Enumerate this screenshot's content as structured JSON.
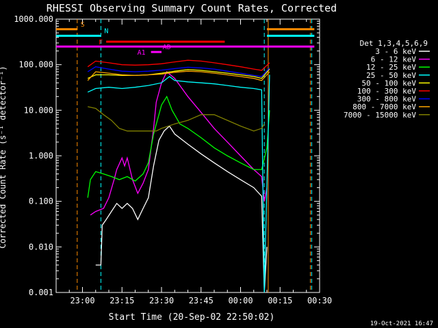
{
  "chart_data": {
    "type": "line",
    "title": "RHESSI Observing Summary Count Rates, Corrected",
    "xlabel": "Start Time (20-Sep-02 22:50:02)",
    "ylabel": "Corrected Count Rate (s⁻¹ detector⁻¹)",
    "footer": "19-Oct-2021 16:47",
    "yscale": "log",
    "ylim": [
      0.001,
      1000
    ],
    "xlim_min": [
      -10,
      90
    ],
    "x_tick_min": [
      0,
      15,
      30,
      45,
      60,
      75,
      90
    ],
    "x_tick_labels": [
      "23:00",
      "23:15",
      "23:30",
      "23:45",
      "00:00",
      "00:15",
      "00:30"
    ],
    "y_ticks": [
      0.001,
      0.01,
      0.1,
      1,
      10,
      100,
      1000
    ],
    "y_tick_labels": [
      "0.001",
      "0.010",
      "0.100",
      "1.000",
      "10.000",
      "100.000",
      "1000.000"
    ],
    "legend": {
      "title": "Det 1,3,4,5,6,9",
      "placement": "right"
    },
    "series": [
      {
        "name": "3 - 6 keV",
        "color": "#ffffff",
        "points": [
          [
            5,
            0.004
          ],
          [
            7,
            0.004
          ],
          [
            7.5,
            0.03
          ],
          [
            9,
            0.04
          ],
          [
            11,
            0.06
          ],
          [
            13,
            0.09
          ],
          [
            15,
            0.07
          ],
          [
            17,
            0.09
          ],
          [
            19,
            0.07
          ],
          [
            21,
            0.04
          ],
          [
            23,
            0.07
          ],
          [
            25,
            0.12
          ],
          [
            27,
            0.6
          ],
          [
            29,
            2.2
          ],
          [
            31,
            3.5
          ],
          [
            33,
            4.5
          ],
          [
            35,
            3
          ],
          [
            40,
            1.8
          ],
          [
            45,
            1.1
          ],
          [
            50,
            0.7
          ],
          [
            55,
            0.45
          ],
          [
            60,
            0.3
          ],
          [
            65,
            0.2
          ],
          [
            68,
            0.13
          ],
          [
            69,
            0.001
          ],
          [
            70,
            0.01
          ]
        ]
      },
      {
        "name": "6 - 12 keV",
        "color": "#ff00ff",
        "points": [
          [
            3,
            0.05
          ],
          [
            5,
            0.06
          ],
          [
            8,
            0.07
          ],
          [
            10,
            0.12
          ],
          [
            12,
            0.3
          ],
          [
            13,
            0.5
          ],
          [
            15,
            0.9
          ],
          [
            16,
            0.6
          ],
          [
            17,
            0.9
          ],
          [
            19,
            0.3
          ],
          [
            21,
            0.15
          ],
          [
            23,
            0.25
          ],
          [
            25,
            0.5
          ],
          [
            27,
            4
          ],
          [
            28,
            15
          ],
          [
            30,
            40
          ],
          [
            32,
            70
          ],
          [
            35,
            50
          ],
          [
            40,
            20
          ],
          [
            45,
            9
          ],
          [
            50,
            4
          ],
          [
            55,
            2
          ],
          [
            60,
            1
          ],
          [
            65,
            0.5
          ],
          [
            68,
            0.35
          ],
          [
            69,
            0.1
          ],
          [
            70,
            0.2
          ]
        ]
      },
      {
        "name": "12 - 25 keV",
        "color": "#00ff00",
        "points": [
          [
            2,
            0.12
          ],
          [
            3,
            0.3
          ],
          [
            5,
            0.45
          ],
          [
            8,
            0.4
          ],
          [
            11,
            0.35
          ],
          [
            14,
            0.3
          ],
          [
            17,
            0.35
          ],
          [
            20,
            0.28
          ],
          [
            23,
            0.4
          ],
          [
            25,
            0.7
          ],
          [
            27,
            3
          ],
          [
            29,
            8
          ],
          [
            30,
            13
          ],
          [
            32,
            20
          ],
          [
            34,
            10
          ],
          [
            37,
            5
          ],
          [
            40,
            4
          ],
          [
            45,
            2.5
          ],
          [
            50,
            1.5
          ],
          [
            55,
            1
          ],
          [
            60,
            0.7
          ],
          [
            65,
            0.5
          ],
          [
            68,
            0.5
          ],
          [
            70,
            1.5
          ],
          [
            71,
            10
          ]
        ]
      },
      {
        "name": "25 - 50 keV",
        "color": "#00ffff",
        "points": [
          [
            2,
            25
          ],
          [
            5,
            30
          ],
          [
            10,
            32
          ],
          [
            15,
            30
          ],
          [
            20,
            32
          ],
          [
            25,
            35
          ],
          [
            30,
            40
          ],
          [
            33,
            55
          ],
          [
            35,
            45
          ],
          [
            40,
            42
          ],
          [
            45,
            40
          ],
          [
            50,
            38
          ],
          [
            55,
            35
          ],
          [
            60,
            32
          ],
          [
            65,
            30
          ],
          [
            68,
            28
          ],
          [
            69,
            0.001
          ],
          [
            71,
            60
          ]
        ]
      },
      {
        "name": "50 - 100 keV",
        "color": "#ffff00",
        "points": [
          [
            2,
            50
          ],
          [
            5,
            60
          ],
          [
            10,
            60
          ],
          [
            15,
            58
          ],
          [
            20,
            58
          ],
          [
            25,
            60
          ],
          [
            30,
            65
          ],
          [
            35,
            72
          ],
          [
            40,
            78
          ],
          [
            45,
            75
          ],
          [
            50,
            70
          ],
          [
            55,
            65
          ],
          [
            60,
            60
          ],
          [
            65,
            55
          ],
          [
            68,
            50
          ],
          [
            71,
            80
          ]
        ]
      },
      {
        "name": "100 - 300 keV",
        "color": "#ff0000",
        "points": [
          [
            2,
            90
          ],
          [
            5,
            120
          ],
          [
            10,
            110
          ],
          [
            15,
            100
          ],
          [
            20,
            98
          ],
          [
            25,
            100
          ],
          [
            30,
            105
          ],
          [
            35,
            115
          ],
          [
            40,
            125
          ],
          [
            45,
            120
          ],
          [
            50,
            110
          ],
          [
            55,
            100
          ],
          [
            60,
            90
          ],
          [
            65,
            80
          ],
          [
            68,
            75
          ],
          [
            71,
            110
          ]
        ]
      },
      {
        "name": "300 - 800 keV",
        "color": "#0000ff",
        "points": [
          [
            2,
            70
          ],
          [
            5,
            90
          ],
          [
            10,
            80
          ],
          [
            15,
            72
          ],
          [
            20,
            70
          ],
          [
            25,
            72
          ],
          [
            30,
            76
          ],
          [
            35,
            82
          ],
          [
            40,
            88
          ],
          [
            45,
            85
          ],
          [
            50,
            80
          ],
          [
            55,
            72
          ],
          [
            60,
            65
          ],
          [
            65,
            58
          ],
          [
            68,
            55
          ],
          [
            71,
            85
          ]
        ]
      },
      {
        "name": "800 - 7000 keV",
        "color": "#ffa500",
        "points": [
          [
            2,
            45
          ],
          [
            5,
            70
          ],
          [
            10,
            65
          ],
          [
            15,
            60
          ],
          [
            20,
            58
          ],
          [
            25,
            60
          ],
          [
            30,
            62
          ],
          [
            35,
            68
          ],
          [
            40,
            72
          ],
          [
            45,
            70
          ],
          [
            50,
            65
          ],
          [
            55,
            60
          ],
          [
            60,
            55
          ],
          [
            65,
            50
          ],
          [
            68,
            45
          ],
          [
            71,
            70
          ]
        ]
      },
      {
        "name": "7000 - 15000 keV",
        "color": "#808000",
        "points": [
          [
            2,
            12
          ],
          [
            5,
            11
          ],
          [
            8,
            8
          ],
          [
            11,
            6
          ],
          [
            14,
            4
          ],
          [
            17,
            3.5
          ],
          [
            20,
            3.5
          ],
          [
            25,
            3.5
          ],
          [
            28,
            3.5
          ],
          [
            30,
            4
          ],
          [
            35,
            5
          ],
          [
            40,
            6
          ],
          [
            45,
            8
          ],
          [
            50,
            8
          ],
          [
            55,
            6
          ],
          [
            60,
            4.5
          ],
          [
            65,
            3.5
          ],
          [
            68,
            4
          ],
          [
            69,
            5
          ]
        ]
      }
    ],
    "flags": [
      {
        "label": "S",
        "color": "#ff8c00",
        "y": 600,
        "x_range": [
          -10,
          -2
        ],
        "x2_range": [
          70,
          88
        ]
      },
      {
        "label": "N",
        "color": "#00ffff",
        "y": 430,
        "x_range": [
          -10,
          7
        ],
        "x2_range": [
          70,
          88
        ]
      },
      {
        "label": "F",
        "color": "#ff0000",
        "y": 320,
        "x_range": [
          9,
          54
        ]
      },
      {
        "label": "AD",
        "color": "#ff00ff",
        "y": 250,
        "x_range": [
          -10,
          88
        ]
      },
      {
        "label": "A1",
        "color": "#ff00ff",
        "y": 190,
        "x_range": [
          26,
          30
        ]
      }
    ],
    "vertical_markers": [
      {
        "x_min": -2,
        "color": "#ff8c00"
      },
      {
        "x_min": 7,
        "color": "#00ffff"
      },
      {
        "x_min": 69,
        "color": "#00ffff"
      },
      {
        "x_min": 70.5,
        "color": "#ff8c00"
      },
      {
        "x_min": 86.5,
        "color": "#ff8c00"
      },
      {
        "x_min": 87,
        "color": "#00ffff"
      }
    ]
  }
}
